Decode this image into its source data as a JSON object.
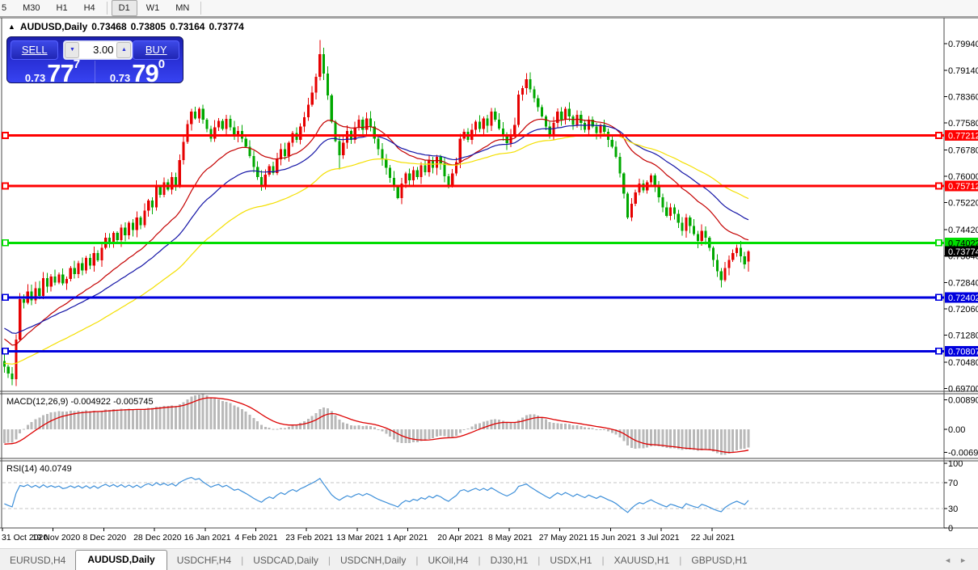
{
  "toolbar": {
    "timeframes": [
      "5",
      "M30",
      "H1",
      "H4",
      "D1",
      "W1",
      "MN"
    ],
    "active": "D1"
  },
  "chart_header": {
    "collapse_icon": "▲",
    "title": "AUDUSD,Daily",
    "ohlc": {
      "open": "0.73468",
      "high": "0.73805",
      "low": "0.73164",
      "close": "0.73774"
    }
  },
  "trade_panel": {
    "sell_label": "SELL",
    "buy_label": "BUY",
    "volume": "3.00",
    "spinner_down": "▼",
    "spinner_up": "▲",
    "sell_price": {
      "prefix": "0.73",
      "big": "77",
      "sup": "7"
    },
    "buy_price": {
      "prefix": "0.73",
      "big": "79",
      "sup": "0"
    }
  },
  "indicators": {
    "macd": {
      "label": "MACD(12,26,9) -0.004922 -0.005745",
      "axis": [
        "0.008903",
        "0.00",
        "-0.006977"
      ]
    },
    "rsi": {
      "label": "RSI(14) 40.0749",
      "axis": [
        "100",
        "70",
        "30",
        "0"
      ]
    }
  },
  "bottom_tabs": {
    "items": [
      "EURUSD,H4",
      "AUDUSD,Daily",
      "USDCHF,H4",
      "USDCAD,Daily",
      "USDCNH,Daily",
      "UKOil,H4",
      "DJ30,H1",
      "USDX,H1",
      "XAUUSD,H1",
      "GBPUSD,H1"
    ],
    "active": "AUDUSD,Daily",
    "scroll_left": "◄",
    "scroll_right": "►"
  },
  "chart_data": {
    "type": "candlestick",
    "symbol": "AUDUSD",
    "timeframe": "Daily",
    "title": "AUDUSD,Daily  O 0.73468  H 0.73805  L 0.73164  C 0.73774",
    "price_range": [
      0.6964,
      0.8068
    ],
    "y_tick_labels": [
      "0.79940",
      "0.79140",
      "0.78360",
      "0.77580",
      "0.76780",
      "0.76000",
      "0.75220",
      "0.74420",
      "0.73640",
      "0.72840",
      "0.72060",
      "0.71280",
      "0.70480",
      "0.69700"
    ],
    "x_tick_labels": [
      "31 Oct 2020",
      "19 Nov 2020",
      "8 Dec 2020",
      "28 Dec 2020",
      "16 Jan 2021",
      "4 Feb 2021",
      "23 Feb 2021",
      "13 Mar 2021",
      "1 Apr 2021",
      "20 Apr 2021",
      "8 May 2021",
      "27 May 2021",
      "15 Jun 2021",
      "3 Jul 2021",
      "22 Jul 2021"
    ],
    "bull_color": "#e60000",
    "bear_color": "#00a800",
    "first_open": 0.7052,
    "closes": [
      0.7035,
      0.7015,
      0.6998,
      0.7115,
      0.7235,
      0.7225,
      0.7258,
      0.7232,
      0.7268,
      0.7245,
      0.7298,
      0.7272,
      0.7302,
      0.7285,
      0.7308,
      0.7282,
      0.7295,
      0.7328,
      0.731,
      0.7342,
      0.732,
      0.7358,
      0.7335,
      0.7372,
      0.735,
      0.7388,
      0.7418,
      0.7398,
      0.7432,
      0.741,
      0.7448,
      0.7425,
      0.7462,
      0.744,
      0.7478,
      0.7455,
      0.7498,
      0.7528,
      0.7508,
      0.7568,
      0.7545,
      0.7582,
      0.756,
      0.7598,
      0.7575,
      0.7648,
      0.7702,
      0.7755,
      0.7792,
      0.7772,
      0.78,
      0.7768,
      0.774,
      0.7712,
      0.7745,
      0.7765,
      0.774,
      0.777,
      0.7745,
      0.7718,
      0.7735,
      0.7712,
      0.7688,
      0.766,
      0.7628,
      0.7598,
      0.7572,
      0.7605,
      0.763,
      0.761,
      0.765,
      0.768,
      0.766,
      0.77,
      0.7728,
      0.7708,
      0.7748,
      0.7775,
      0.7812,
      0.7848,
      0.7895,
      0.7962,
      0.7905,
      0.784,
      0.7762,
      0.7705,
      0.7662,
      0.77,
      0.7735,
      0.7708,
      0.7745,
      0.7768,
      0.7738,
      0.7772,
      0.7748,
      0.7712,
      0.768,
      0.7652,
      0.7625,
      0.7595,
      0.7568,
      0.7535,
      0.7578,
      0.7608,
      0.7588,
      0.7618,
      0.7598,
      0.7632,
      0.7612,
      0.7648,
      0.7625,
      0.7658,
      0.7638,
      0.76,
      0.7572,
      0.7608,
      0.7642,
      0.7712,
      0.7732,
      0.7708,
      0.7738,
      0.7762,
      0.774,
      0.7772,
      0.775,
      0.7792,
      0.7768,
      0.7742,
      0.7718,
      0.7698,
      0.7722,
      0.7752,
      0.7842,
      0.7862,
      0.7888,
      0.7858,
      0.7832,
      0.7805,
      0.7778,
      0.7748,
      0.7722,
      0.7758,
      0.7792,
      0.7768,
      0.78,
      0.7778,
      0.7752,
      0.7782,
      0.7758,
      0.7738,
      0.7768,
      0.7748,
      0.7728,
      0.7752,
      0.7732,
      0.7708,
      0.7688,
      0.7658,
      0.7608,
      0.7548,
      0.7478,
      0.7518,
      0.7552,
      0.7578,
      0.7558,
      0.7582,
      0.7602,
      0.7568,
      0.7538,
      0.7508,
      0.7482,
      0.7508,
      0.7488,
      0.7462,
      0.7438,
      0.7478,
      0.7452,
      0.7428,
      0.7408,
      0.7438,
      0.7418,
      0.7388,
      0.7352,
      0.7318,
      0.7292,
      0.7328,
      0.7352,
      0.7372,
      0.7388,
      0.7362,
      0.7338,
      0.73774
    ],
    "last_candle": {
      "open": 0.73468,
      "high": 0.73805,
      "low": 0.73164,
      "close": 0.73774
    },
    "wick_overrides": {
      "2": {
        "low": 0.698
      },
      "81": {
        "high": 0.8005
      },
      "86": {
        "low": 0.762
      },
      "101": {
        "low": 0.7532
      },
      "184": {
        "low": 0.727
      }
    },
    "moving_averages": [
      {
        "name": "fast-ma",
        "color": "#c40000",
        "period": 22,
        "seed": 0.7125
      },
      {
        "name": "mid-ma",
        "color": "#1414a6",
        "period": 38,
        "seed": 0.7155
      },
      {
        "name": "slow-ma",
        "color": "#f4df00",
        "period": 65,
        "seed": 0.7045
      }
    ],
    "h_lines": [
      {
        "price": 0.77212,
        "label": "0.77212",
        "color": "#ff0000",
        "text": "#ffffff"
      },
      {
        "price": 0.75712,
        "label": "0.75712",
        "color": "#ff0000",
        "text": "#ffffff"
      },
      {
        "price": 0.74022,
        "label": "0.74022",
        "color": "#00dd00",
        "text": "#000000"
      },
      {
        "price": 0.72402,
        "label": "0.72402",
        "color": "#0000dd",
        "text": "#ffffff"
      },
      {
        "price": 0.70807,
        "label": "0.70807",
        "color": "#0000dd",
        "text": "#ffffff"
      }
    ],
    "current_price": {
      "value": 0.73774,
      "label": "0.73774",
      "bg": "#000000",
      "text": "#ffffff"
    },
    "macd": {
      "fast": 12,
      "slow": 26,
      "signal": 9,
      "range": [
        -0.0085,
        0.0105
      ],
      "initial_offset": 0.0045,
      "bar_color": "#b9b9b9",
      "line_color": "#dd0000",
      "current_main": -0.004922,
      "current_signal": -0.005745
    },
    "rsi": {
      "period": 14,
      "range": [
        0,
        100
      ],
      "levels": [
        70,
        30
      ],
      "current": 40.0749,
      "seed_gain": 0.0008,
      "seed_loss": 0.0013,
      "color": "#3d8fd9",
      "level_color": "#c4c4c4"
    }
  }
}
